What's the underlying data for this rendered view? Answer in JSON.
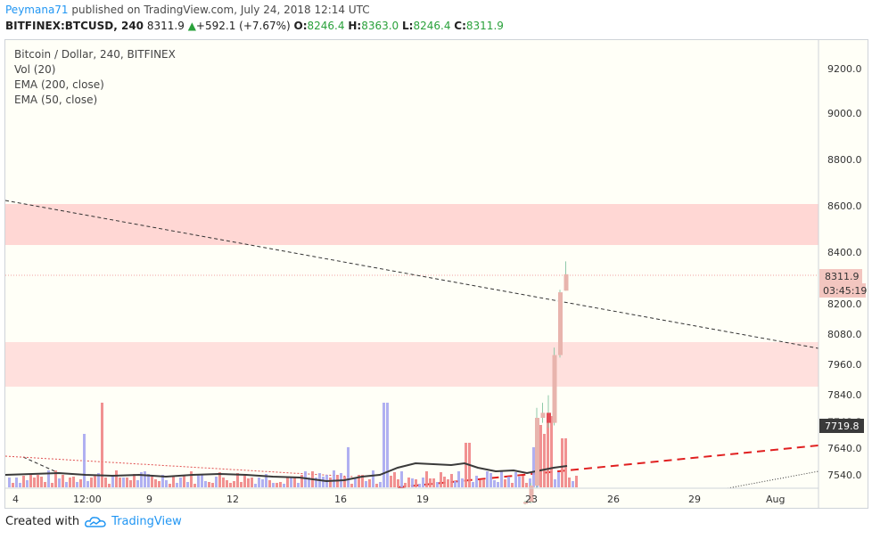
{
  "header": {
    "author": "Peymana71",
    "published": "published on TradingView.com, July 24, 2018 12:14 UTC"
  },
  "ticker": {
    "symbol": "BITFINEX:BTCUSD, 240",
    "last": "8311.9",
    "arrow": "▲",
    "change": "+592.1 (+7.67%)",
    "o_label": "O:",
    "o_val": "8246.4",
    "h_label": "H:",
    "h_val": "8363.0",
    "l_label": "L:",
    "l_val": "8246.4",
    "c_label": "C:",
    "c_val": "8311.9"
  },
  "legend": {
    "title": "Bitcoin / Dollar, 240, BITFINEX",
    "vol": "Vol (20)",
    "ema200": "EMA (200, close)",
    "ema50": "EMA (50, close)"
  },
  "price_axis": {
    "ticks": [
      "9200.0",
      "9000.0",
      "8800.0",
      "8600.0",
      "8400.0",
      "8200.0",
      "8080.0",
      "7960.0",
      "7840.0",
      "7640.0",
      "7540.0"
    ],
    "last_price_label": "8311.9",
    "countdown_label": "03:45:19",
    "ema_price_label": "7719.8",
    "partial_label": "7740.0"
  },
  "time_axis": {
    "ticks": [
      "4",
      "12:00",
      "9",
      "12",
      "16",
      "19",
      "23",
      "26",
      "29",
      "Aug"
    ]
  },
  "footer": {
    "created_with": "Created with",
    "brand": "TradingView",
    "logo_icon": "tradingview-cloud-icon"
  },
  "colors": {
    "accent": "#2196f3",
    "up": "#2aa13b",
    "zone": "#ffd7d4",
    "candle_up": "#e8b4ad",
    "candle_down": "#e24c55",
    "vol_blue": "#a7a7ef",
    "vol_red": "#ef8585",
    "trend_red": "#e02020"
  },
  "chart_data": {
    "type": "candlestick",
    "title": "Bitcoin / Dollar, 240, BITFINEX",
    "y_range": [
      7500,
      9300
    ],
    "resistance_zones": [
      [
        8430,
        8600
      ],
      [
        7880,
        8010
      ]
    ],
    "recent_candles_approx": [
      {
        "o": 7400,
        "h": 7410,
        "l": 7395,
        "c": 7405
      },
      {
        "o": 7405,
        "h": 7480,
        "l": 7400,
        "c": 7470
      },
      {
        "o": 7470,
        "h": 7780,
        "l": 7460,
        "c": 7740
      },
      {
        "o": 7740,
        "h": 7800,
        "l": 7720,
        "c": 7760
      },
      {
        "o": 7760,
        "h": 7830,
        "l": 7700,
        "c": 7720
      },
      {
        "o": 7720,
        "h": 8020,
        "l": 7710,
        "c": 7990
      },
      {
        "o": 7990,
        "h": 8250,
        "l": 7980,
        "c": 8240
      },
      {
        "o": 8246.4,
        "h": 8363.0,
        "l": 8246.4,
        "c": 8311.9
      }
    ],
    "last_price": 8311.9
  }
}
